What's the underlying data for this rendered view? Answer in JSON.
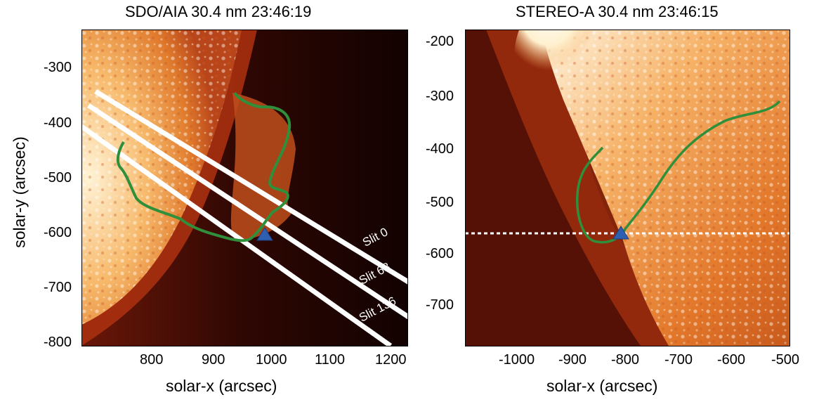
{
  "panels": [
    {
      "title": "SDO/AIA 30.4 nm 23:46:19",
      "xlabel": "solar-x (arcsec)",
      "ylabel": "solar-y (arcsec)",
      "xticks": [
        "800",
        "900",
        "1000",
        "1100",
        "1200"
      ],
      "yticks": [
        "-300",
        "-400",
        "-500",
        "-600",
        "-700",
        "-800"
      ],
      "slits": [
        "Slit 0",
        "Slit 68",
        "Slit 136"
      ],
      "colors": {
        "loop": "#2f8f3a",
        "marker": "#2f5fb0",
        "slit": "#ffffff"
      }
    },
    {
      "title": "STEREO-A  30.4 nm 23:46:15",
      "xlabel": "solar-x (arcsec)",
      "yticks": [
        "-200",
        "-300",
        "-400",
        "-500",
        "-600",
        "-700"
      ],
      "xticks": [
        "-1000",
        "-900",
        "-800",
        "-700",
        "-600",
        "-500"
      ],
      "colors": {
        "loop": "#2f8f3a",
        "marker": "#2f5fb0",
        "dashed": "#ffffff"
      }
    }
  ]
}
